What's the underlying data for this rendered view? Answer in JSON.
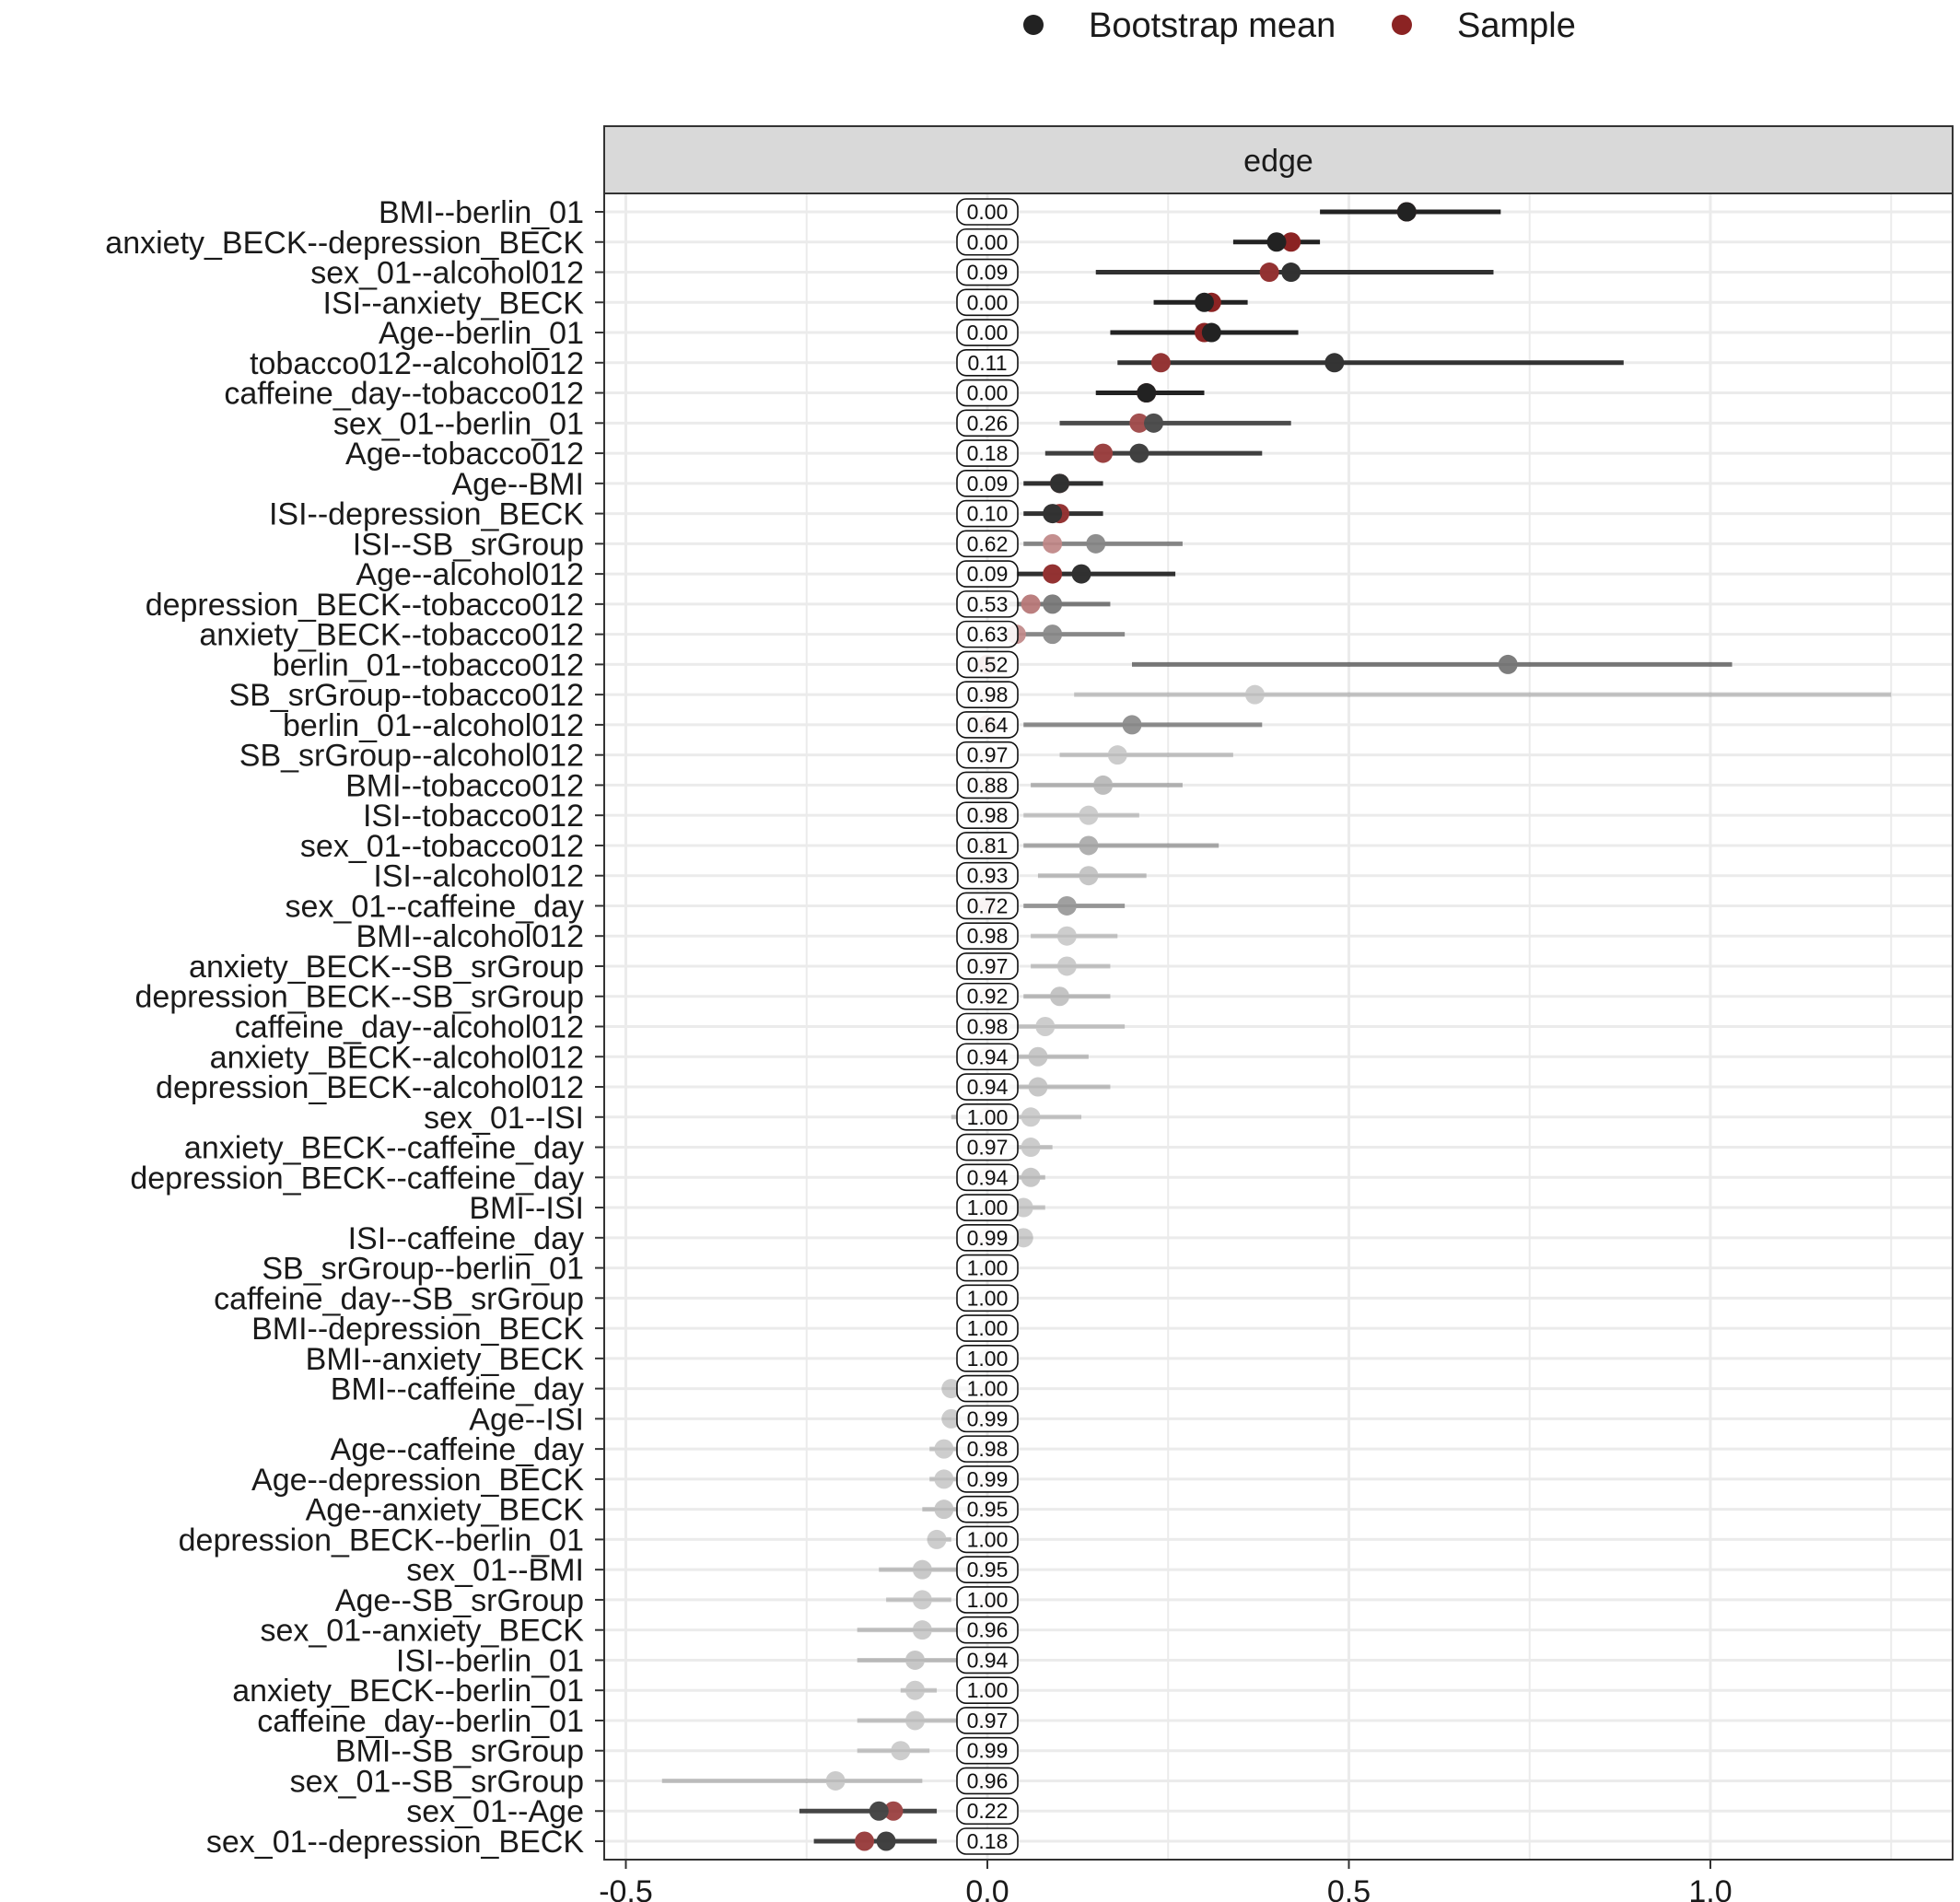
{
  "legend": {
    "bootstrap_label": "Bootstrap mean",
    "sample_label": "Sample",
    "bootstrap_color": "#222222",
    "sample_color": "#8b2323"
  },
  "panel": {
    "strip_label": "edge",
    "strip_color": "#d9d9d9",
    "grid_color": "#ebebeb"
  },
  "chart_data": {
    "type": "scatter",
    "orientation": "horizontal-interval",
    "xlim": [
      -0.52,
      1.3
    ],
    "x_ticks": [
      -0.5,
      0.0,
      0.5,
      1.0
    ],
    "x_tick_labels": [
      "-0.5",
      "0.0",
      "0.5",
      "1.0"
    ],
    "grid": true,
    "legend_position": "top",
    "columns": [
      "edge",
      "bootstrap_mean",
      "sample",
      "ci_low",
      "ci_high",
      "p_value"
    ],
    "rows": [
      [
        "BMI--berlin_01",
        0.58,
        0.58,
        0.46,
        0.71,
        "0.00"
      ],
      [
        "anxiety_BECK--depression_BECK",
        0.4,
        0.42,
        0.34,
        0.46,
        "0.00"
      ],
      [
        "sex_01--alcohol012",
        0.42,
        0.39,
        0.15,
        0.7,
        "0.09"
      ],
      [
        "ISI--anxiety_BECK",
        0.3,
        0.31,
        0.23,
        0.36,
        "0.00"
      ],
      [
        "Age--berlin_01",
        0.31,
        0.3,
        0.17,
        0.43,
        "0.00"
      ],
      [
        "tobacco012--alcohol012",
        0.48,
        0.24,
        0.18,
        0.88,
        "0.11"
      ],
      [
        "caffeine_day--tobacco012",
        0.22,
        0.22,
        0.15,
        0.3,
        "0.00"
      ],
      [
        "sex_01--berlin_01",
        0.23,
        0.21,
        0.1,
        0.42,
        "0.26"
      ],
      [
        "Age--tobacco012",
        0.21,
        0.16,
        0.08,
        0.38,
        "0.18"
      ],
      [
        "Age--BMI",
        0.1,
        0.1,
        0.05,
        0.16,
        "0.09"
      ],
      [
        "ISI--depression_BECK",
        0.09,
        0.1,
        0.05,
        0.16,
        "0.10"
      ],
      [
        "ISI--SB_srGroup",
        0.15,
        0.09,
        0.05,
        0.27,
        "0.62"
      ],
      [
        "Age--alcohol012",
        0.13,
        0.09,
        0.04,
        0.26,
        "0.09"
      ],
      [
        "depression_BECK--tobacco012",
        0.09,
        0.06,
        0.03,
        0.17,
        "0.53"
      ],
      [
        "anxiety_BECK--tobacco012",
        0.09,
        0.04,
        0.02,
        0.19,
        "0.63"
      ],
      [
        "berlin_01--tobacco012",
        0.72,
        0.0,
        0.2,
        1.03,
        "0.52"
      ],
      [
        "SB_srGroup--tobacco012",
        0.37,
        0.0,
        0.12,
        1.25,
        "0.98"
      ],
      [
        "berlin_01--alcohol012",
        0.2,
        0.0,
        0.05,
        0.38,
        "0.64"
      ],
      [
        "SB_srGroup--alcohol012",
        0.18,
        0.0,
        0.1,
        0.34,
        "0.97"
      ],
      [
        "BMI--tobacco012",
        0.16,
        0.0,
        0.06,
        0.27,
        "0.88"
      ],
      [
        "ISI--tobacco012",
        0.14,
        0.0,
        0.05,
        0.21,
        "0.98"
      ],
      [
        "sex_01--tobacco012",
        0.14,
        0.0,
        0.05,
        0.32,
        "0.81"
      ],
      [
        "ISI--alcohol012",
        0.14,
        0.0,
        0.07,
        0.22,
        "0.93"
      ],
      [
        "sex_01--caffeine_day",
        0.11,
        0.0,
        0.05,
        0.19,
        "0.72"
      ],
      [
        "BMI--alcohol012",
        0.11,
        0.0,
        0.06,
        0.18,
        "0.98"
      ],
      [
        "anxiety_BECK--SB_srGroup",
        0.11,
        0.0,
        0.06,
        0.17,
        "0.97"
      ],
      [
        "depression_BECK--SB_srGroup",
        0.1,
        0.0,
        0.05,
        0.17,
        "0.92"
      ],
      [
        "caffeine_day--alcohol012",
        0.08,
        0.0,
        0.03,
        0.19,
        "0.98"
      ],
      [
        "anxiety_BECK--alcohol012",
        0.07,
        0.0,
        0.03,
        0.14,
        "0.94"
      ],
      [
        "depression_BECK--alcohol012",
        0.07,
        0.0,
        0.03,
        0.17,
        "0.94"
      ],
      [
        "sex_01--ISI",
        0.06,
        0.0,
        -0.05,
        0.13,
        "1.00"
      ],
      [
        "anxiety_BECK--caffeine_day",
        0.06,
        0.0,
        0.02,
        0.09,
        "0.97"
      ],
      [
        "depression_BECK--caffeine_day",
        0.06,
        0.0,
        0.02,
        0.08,
        "0.94"
      ],
      [
        "BMI--ISI",
        0.05,
        0.0,
        0.02,
        0.08,
        "1.00"
      ],
      [
        "ISI--caffeine_day",
        0.05,
        0.0,
        0.02,
        0.06,
        "0.99"
      ],
      [
        "SB_srGroup--berlin_01",
        0.0,
        0.0,
        0.0,
        0.0,
        "1.00"
      ],
      [
        "caffeine_day--SB_srGroup",
        0.0,
        0.0,
        0.0,
        0.0,
        "1.00"
      ],
      [
        "BMI--depression_BECK",
        0.0,
        0.0,
        0.0,
        0.0,
        "1.00"
      ],
      [
        "BMI--anxiety_BECK",
        0.0,
        0.0,
        0.0,
        0.0,
        "1.00"
      ],
      [
        "BMI--caffeine_day",
        -0.05,
        0.0,
        -0.06,
        -0.01,
        "1.00"
      ],
      [
        "Age--ISI",
        -0.05,
        0.0,
        -0.06,
        -0.02,
        "0.99"
      ],
      [
        "Age--caffeine_day",
        -0.06,
        0.0,
        -0.08,
        -0.02,
        "0.98"
      ],
      [
        "Age--depression_BECK",
        -0.06,
        0.0,
        -0.08,
        -0.03,
        "0.99"
      ],
      [
        "Age--anxiety_BECK",
        -0.06,
        0.0,
        -0.09,
        -0.02,
        "0.95"
      ],
      [
        "depression_BECK--berlin_01",
        -0.07,
        0.0,
        -0.08,
        -0.05,
        "1.00"
      ],
      [
        "sex_01--BMI",
        -0.09,
        0.0,
        -0.15,
        -0.02,
        "0.95"
      ],
      [
        "Age--SB_srGroup",
        -0.09,
        0.0,
        -0.14,
        -0.05,
        "1.00"
      ],
      [
        "sex_01--anxiety_BECK",
        -0.09,
        0.0,
        -0.18,
        -0.03,
        "0.96"
      ],
      [
        "ISI--berlin_01",
        -0.1,
        0.0,
        -0.18,
        -0.04,
        "0.94"
      ],
      [
        "anxiety_BECK--berlin_01",
        -0.1,
        0.0,
        -0.12,
        -0.07,
        "1.00"
      ],
      [
        "caffeine_day--berlin_01",
        -0.1,
        0.0,
        -0.18,
        -0.04,
        "0.97"
      ],
      [
        "BMI--SB_srGroup",
        -0.12,
        0.0,
        -0.18,
        -0.08,
        "0.99"
      ],
      [
        "sex_01--SB_srGroup",
        -0.21,
        0.0,
        -0.45,
        -0.09,
        "0.96"
      ],
      [
        "sex_01--Age",
        -0.15,
        -0.13,
        -0.26,
        -0.07,
        "0.22"
      ],
      [
        "sex_01--depression_BECK",
        -0.14,
        -0.17,
        -0.24,
        -0.07,
        "0.18"
      ]
    ]
  }
}
